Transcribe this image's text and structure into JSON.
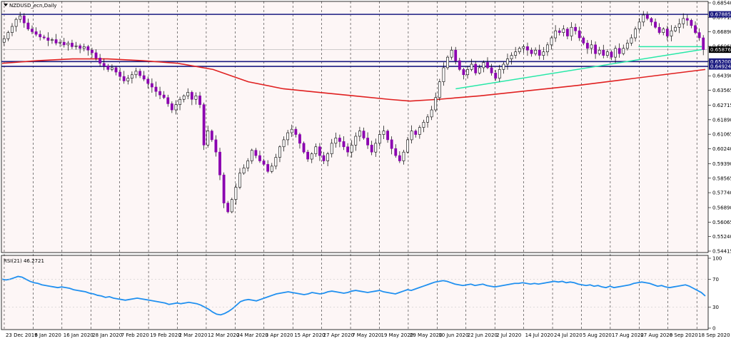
{
  "title": "NZDUSD_ecn,Daily",
  "indicator_label": "RSI(21) 46.2721",
  "colors": {
    "background": "#fdf6f6",
    "up_candle": "#ffffff",
    "down_candle": "#8b00b0",
    "ma_line": "#e02020",
    "trend_line": "#28e8a8",
    "level_line": "#1a1a80",
    "rsi_line": "#2090f0",
    "current_price_box": "#000000"
  },
  "chart_data": [
    {
      "type": "candlestick",
      "symbol": "NZDUSD_ecn",
      "timeframe": "Daily",
      "ylim": [
        0.54415,
        0.6854
      ],
      "y_ticks": [
        "0.68540",
        "0.67715",
        "0.66890",
        "0.66065",
        "0.65240",
        "0.64390",
        "0.63565",
        "0.62715",
        "0.61890",
        "0.61065",
        "0.60240",
        "0.59390",
        "0.58565",
        "0.57740",
        "0.56890",
        "0.56065",
        "0.55240",
        "0.54415"
      ],
      "x_ticks": [
        "23 Dec 2019",
        "6 Jan 2020",
        "16 Jan 2020",
        "28 Jan 2020",
        "7 Feb 2020",
        "19 Feb 2020",
        "2 Mar 2020",
        "12 Mar 2020",
        "24 Mar 2020",
        "3 Apr 2020",
        "15 Apr 2020",
        "27 Apr 2020",
        "7 May 2020",
        "19 May 2020",
        "29 May 2020",
        "10 Jun 2020",
        "22 Jun 2020",
        "2 Jul 2020",
        "14 Jul 2020",
        "24 Jul 2020",
        "5 Aug 2020",
        "17 Aug 2020",
        "27 Aug 2020",
        "8 Sep 2020",
        "18 Sep 2020"
      ],
      "price_labels": [
        {
          "value": 0.67885,
          "text": "0.67885",
          "kind": "level"
        },
        {
          "value": 0.65876,
          "text": "0.65876",
          "kind": "current"
        },
        {
          "value": 0.652,
          "text": "0.65200",
          "kind": "level"
        },
        {
          "value": 0.64924,
          "text": "0.64924",
          "kind": "level"
        }
      ],
      "horizontal_levels": [
        0.67885,
        0.652,
        0.64924
      ],
      "close_path": [
        0.665,
        0.6685,
        0.672,
        0.676,
        0.678,
        0.674,
        0.6705,
        0.669,
        0.6675,
        0.666,
        0.6655,
        0.664,
        0.6645,
        0.6625,
        0.663,
        0.6615,
        0.6625,
        0.6605,
        0.661,
        0.6595,
        0.6605,
        0.6585,
        0.657,
        0.654,
        0.651,
        0.6495,
        0.6475,
        0.6485,
        0.646,
        0.6435,
        0.641,
        0.6425,
        0.6445,
        0.6465,
        0.644,
        0.642,
        0.6395,
        0.6375,
        0.635,
        0.633,
        0.6315,
        0.628,
        0.6245,
        0.6275,
        0.6305,
        0.6325,
        0.6345,
        0.6305,
        0.6325,
        0.6275,
        0.6045,
        0.6125,
        0.6075,
        0.6005,
        0.5875,
        0.5715,
        0.5665,
        0.5735,
        0.5805,
        0.5885,
        0.5915,
        0.5955,
        0.6015,
        0.5985,
        0.5955,
        0.5935,
        0.5895,
        0.5925,
        0.5975,
        0.6035,
        0.6075,
        0.6115,
        0.6135,
        0.6105,
        0.6055,
        0.6005,
        0.5965,
        0.5995,
        0.6035,
        0.5985,
        0.5955,
        0.5995,
        0.6055,
        0.6085,
        0.6065,
        0.6035,
        0.6005,
        0.6045,
        0.6095,
        0.6125,
        0.6085,
        0.6045,
        0.6005,
        0.6055,
        0.6105,
        0.6125,
        0.6075,
        0.6025,
        0.5985,
        0.5955,
        0.6005,
        0.6075,
        0.6125,
        0.6105,
        0.6145,
        0.6175,
        0.6205,
        0.6245,
        0.6315,
        0.6405,
        0.6485,
        0.6545,
        0.6585,
        0.6525,
        0.6475,
        0.6445,
        0.6475,
        0.6505,
        0.6455,
        0.6485,
        0.6515,
        0.6485,
        0.6455,
        0.6425,
        0.6475,
        0.6505,
        0.6535,
        0.6555,
        0.6575,
        0.6595,
        0.6605,
        0.6585,
        0.6565,
        0.6585,
        0.6555,
        0.6575,
        0.6615,
        0.6655,
        0.6695,
        0.6685,
        0.6705,
        0.6665,
        0.6715,
        0.6695,
        0.6655,
        0.6625,
        0.6595,
        0.6615,
        0.6565,
        0.6585,
        0.6555,
        0.6575,
        0.6545,
        0.6595,
        0.6565,
        0.6595,
        0.6625,
        0.6655,
        0.6705,
        0.6745,
        0.6785,
        0.6765,
        0.6745,
        0.6715,
        0.6685,
        0.6705,
        0.6665,
        0.6695,
        0.6715,
        0.6735,
        0.6765,
        0.6755,
        0.6725,
        0.6685,
        0.6655,
        0.6588
      ],
      "moving_average": {
        "x": [
          0,
          0.05,
          0.1,
          0.15,
          0.2,
          0.25,
          0.3,
          0.35,
          0.4,
          0.45,
          0.5,
          0.55,
          0.58,
          0.62,
          0.68,
          0.75,
          0.82,
          0.88,
          0.94,
          1.0
        ],
        "y": [
          0.651,
          0.6525,
          0.6535,
          0.6535,
          0.6525,
          0.651,
          0.6475,
          0.6405,
          0.6365,
          0.6345,
          0.6325,
          0.6305,
          0.6295,
          0.6305,
          0.6325,
          0.6355,
          0.6385,
          0.6415,
          0.6445,
          0.6475
        ]
      },
      "trend_lines": [
        {
          "x": [
            0.645,
            0.995
          ],
          "y": [
            0.6365,
            0.6588
          ]
        },
        {
          "x": [
            0.905,
            0.995
          ],
          "y": [
            0.6605,
            0.6605
          ]
        }
      ]
    },
    {
      "type": "line",
      "name": "RSI(21) 46.2721",
      "ylim": [
        0,
        100
      ],
      "y_ticks": [
        "100",
        "70",
        "30",
        "0"
      ],
      "values": [
        70,
        69,
        70,
        72,
        74,
        73,
        70,
        67,
        65,
        64,
        62,
        61,
        60,
        59,
        58,
        59,
        58,
        57,
        55,
        54,
        53,
        52,
        50,
        49,
        47,
        46,
        44,
        45,
        43,
        42,
        41,
        40,
        41,
        42,
        43,
        42,
        41,
        40,
        39,
        38,
        37,
        36,
        34,
        35,
        36,
        35,
        36,
        37,
        36,
        35,
        33,
        30,
        27,
        23,
        20,
        19,
        21,
        24,
        28,
        33,
        38,
        40,
        41,
        40,
        39,
        41,
        43,
        45,
        47,
        49,
        50,
        51,
        52,
        51,
        50,
        49,
        48,
        49,
        51,
        50,
        49,
        50,
        52,
        53,
        52,
        51,
        50,
        51,
        53,
        54,
        53,
        52,
        51,
        52,
        53,
        54,
        52,
        51,
        50,
        49,
        51,
        53,
        55,
        54,
        56,
        58,
        60,
        62,
        64,
        66,
        67,
        68,
        67,
        65,
        63,
        62,
        61,
        62,
        63,
        61,
        62,
        63,
        61,
        60,
        59,
        60,
        61,
        62,
        63,
        64,
        64,
        65,
        64,
        63,
        64,
        63,
        64,
        65,
        66,
        67,
        66,
        67,
        65,
        66,
        65,
        63,
        62,
        61,
        62,
        60,
        61,
        59,
        58,
        60,
        58,
        59,
        60,
        61,
        62,
        64,
        65,
        66,
        65,
        64,
        62,
        60,
        61,
        59,
        58,
        59,
        60,
        61,
        62,
        60,
        57,
        54,
        51,
        46
      ],
      "last_value": 46.2721
    }
  ]
}
